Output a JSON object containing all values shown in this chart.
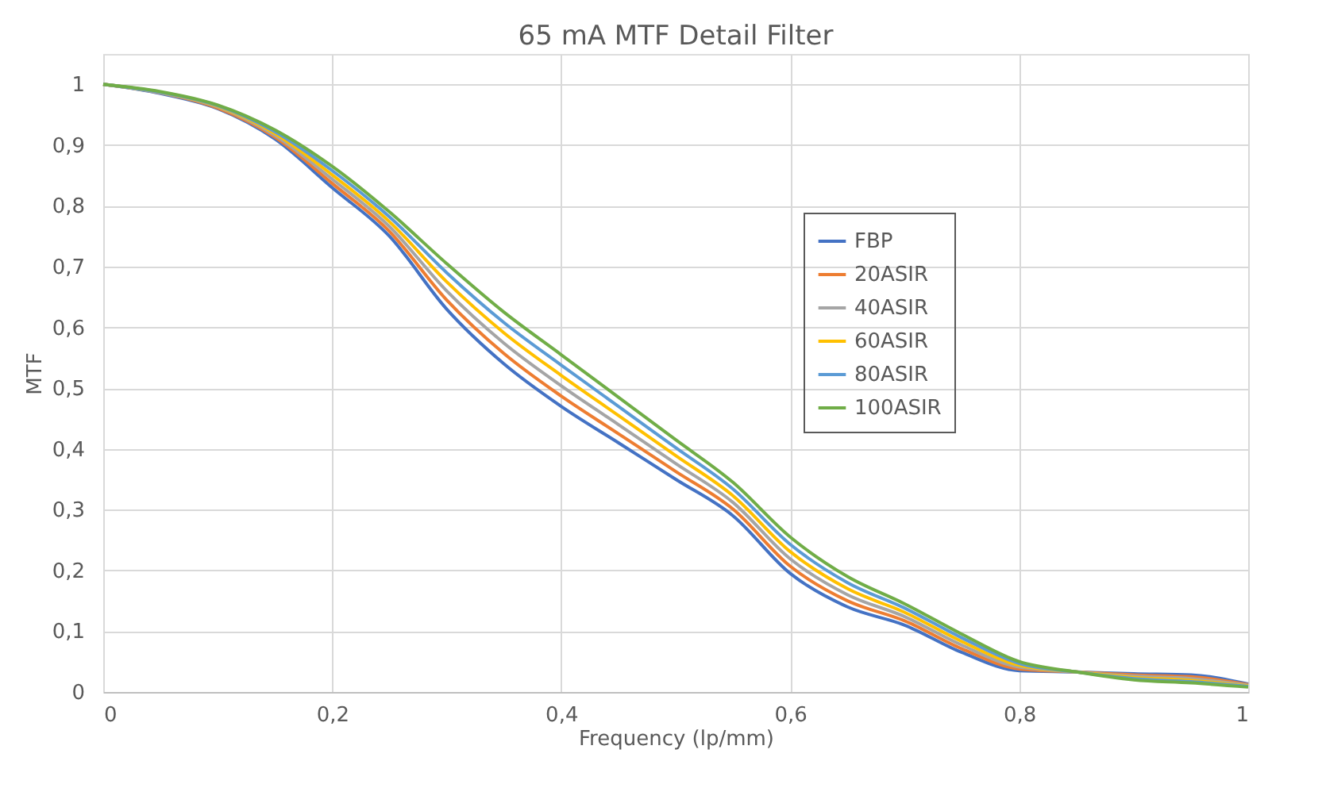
{
  "chart_data": {
    "type": "line",
    "title": "65 mA MTF Detail Filter",
    "xlabel": "Frequency (lp/mm)",
    "ylabel": "MTF",
    "x": [
      0,
      0.05,
      0.1,
      0.15,
      0.2,
      0.25,
      0.3,
      0.35,
      0.4,
      0.45,
      0.5,
      0.55,
      0.6,
      0.65,
      0.7,
      0.75,
      0.8,
      0.85,
      0.9,
      0.95,
      1
    ],
    "series": [
      {
        "name": "FBP",
        "color": "#4472c4",
        "values": [
          1,
          0.985,
          0.96,
          0.91,
          0.83,
          0.75,
          0.63,
          0.54,
          0.47,
          0.41,
          0.35,
          0.29,
          0.195,
          0.14,
          0.11,
          0.065,
          0.035,
          0.033,
          0.03,
          0.028,
          0.013
        ]
      },
      {
        "name": "20ASIR",
        "color": "#ed7d31",
        "values": [
          1,
          0.986,
          0.961,
          0.913,
          0.837,
          0.758,
          0.645,
          0.557,
          0.487,
          0.425,
          0.363,
          0.301,
          0.207,
          0.15,
          0.117,
          0.071,
          0.038,
          0.033,
          0.028,
          0.025,
          0.012
        ]
      },
      {
        "name": "40ASIR",
        "color": "#a5a5a5",
        "values": [
          1,
          0.986,
          0.963,
          0.916,
          0.844,
          0.766,
          0.66,
          0.574,
          0.504,
          0.44,
          0.376,
          0.312,
          0.219,
          0.16,
          0.124,
          0.077,
          0.041,
          0.033,
          0.026,
          0.022,
          0.011
        ]
      },
      {
        "name": "60ASIR",
        "color": "#ffc000",
        "values": [
          1,
          0.987,
          0.964,
          0.919,
          0.851,
          0.774,
          0.675,
          0.591,
          0.521,
          0.455,
          0.389,
          0.323,
          0.231,
          0.17,
          0.131,
          0.083,
          0.044,
          0.033,
          0.024,
          0.019,
          0.01
        ]
      },
      {
        "name": "80ASIR",
        "color": "#5b9bd5",
        "values": [
          1,
          0.987,
          0.965,
          0.922,
          0.858,
          0.782,
          0.69,
          0.608,
          0.538,
          0.47,
          0.402,
          0.334,
          0.243,
          0.18,
          0.138,
          0.089,
          0.047,
          0.033,
          0.022,
          0.017,
          0.009
        ]
      },
      {
        "name": "100ASIR",
        "color": "#70ad47",
        "values": [
          1,
          0.988,
          0.966,
          0.925,
          0.865,
          0.79,
          0.705,
          0.625,
          0.555,
          0.485,
          0.415,
          0.345,
          0.255,
          0.19,
          0.145,
          0.095,
          0.05,
          0.033,
          0.02,
          0.015,
          0.008
        ]
      }
    ],
    "xlim": [
      0,
      1
    ],
    "xticks": [
      0,
      {
        "value": 0.2,
        "label": "0,2"
      },
      {
        "value": 0.4,
        "label": "0,4"
      },
      {
        "value": 0.6,
        "label": "0,6"
      },
      {
        "value": 0.8,
        "label": "0,8"
      },
      1
    ],
    "ylim": [
      0,
      1.05
    ],
    "yticks": [
      0,
      {
        "value": 0.1,
        "label": "0,1"
      },
      {
        "value": 0.2,
        "label": "0,2"
      },
      {
        "value": 0.3,
        "label": "0,3"
      },
      {
        "value": 0.4,
        "label": "0,4"
      },
      {
        "value": 0.5,
        "label": "0,5"
      },
      {
        "value": 0.6,
        "label": "0,6"
      },
      {
        "value": 0.7,
        "label": "0,7"
      },
      {
        "value": 0.8,
        "label": "0,8"
      },
      {
        "value": 0.9,
        "label": "0,9"
      },
      1
    ],
    "grid": true,
    "legend": "right",
    "marker": "none",
    "line_style": "solid"
  }
}
